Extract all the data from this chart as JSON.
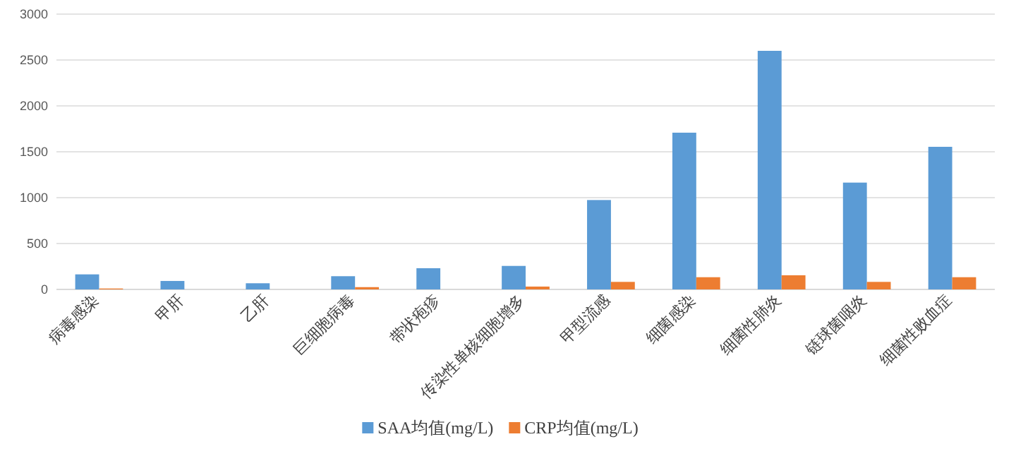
{
  "chart_data": {
    "type": "bar",
    "categories": [
      "病毒感染",
      "甲肝",
      "乙肝",
      "巨细胞病毒",
      "带状疱疹",
      "传染性单核细胞增多",
      "甲型流感",
      "细菌感染",
      "细菌性肺炎",
      "链球菌咽炎",
      "细菌性败血症"
    ],
    "series": [
      {
        "name": "SAA均值(mg/L)",
        "color": "#5b9bd5",
        "values": [
          164,
          92,
          67,
          144,
          231,
          256,
          974,
          1708,
          2600,
          1164,
          1554
        ]
      },
      {
        "name": "CRP均值(mg/L)",
        "color": "#ed7d31",
        "values": [
          10,
          0,
          0,
          25,
          0,
          31,
          82,
          133,
          154,
          82,
          133
        ]
      }
    ],
    "ylim": [
      0,
      3000
    ],
    "yticks": [
      0,
      500,
      1000,
      1500,
      2000,
      2500,
      3000
    ],
    "grid": "y",
    "legend": "bottom"
  }
}
